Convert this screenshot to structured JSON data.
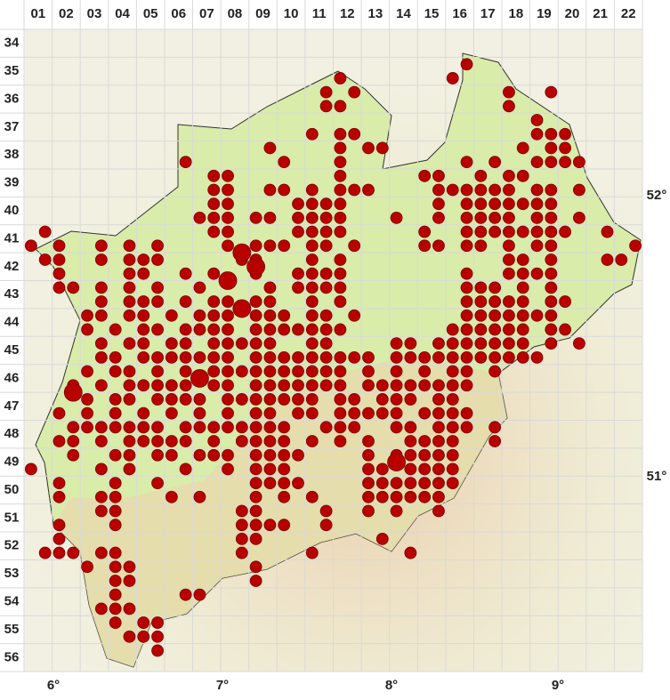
{
  "columns": [
    "01",
    "02",
    "03",
    "04",
    "05",
    "06",
    "07",
    "08",
    "09",
    "10",
    "11",
    "12",
    "13",
    "14",
    "15",
    "16",
    "17",
    "18",
    "19",
    "20",
    "21",
    "22"
  ],
  "rows": [
    "34",
    "35",
    "36",
    "37",
    "38",
    "39",
    "40",
    "41",
    "42",
    "43",
    "44",
    "45",
    "46",
    "47",
    "48",
    "49",
    "50",
    "51",
    "52",
    "53",
    "54",
    "55",
    "56"
  ],
  "lon_labels": [
    "6°",
    "7°",
    "8°",
    "9°"
  ],
  "lat_labels": [
    "52°",
    "51°"
  ],
  "dots": [
    {
      "row": 2,
      "cols": [
        31
      ]
    },
    {
      "row": 3,
      "cols": [
        22,
        30
      ]
    },
    {
      "row": 4,
      "cols": [
        21,
        23,
        34,
        37
      ]
    },
    {
      "row": 5,
      "cols": [
        21,
        22,
        34
      ]
    },
    {
      "row": 6,
      "cols": [
        36
      ]
    },
    {
      "row": 7,
      "cols": [
        20,
        22,
        23,
        36,
        37,
        38
      ]
    },
    {
      "row": 8,
      "cols": [
        17,
        22,
        24,
        25,
        35,
        37,
        38
      ]
    },
    {
      "row": 9,
      "cols": [
        11,
        18,
        22,
        31,
        33,
        36,
        37,
        38,
        39
      ]
    },
    {
      "row": 10,
      "cols": [
        13,
        14,
        22,
        28,
        29,
        32,
        34,
        35
      ]
    },
    {
      "row": 11,
      "cols": [
        13,
        14,
        17,
        18,
        20,
        22,
        23,
        24,
        29,
        30,
        31,
        32,
        33,
        34,
        36,
        37,
        39
      ]
    },
    {
      "row": 12,
      "cols": [
        13,
        14,
        19,
        20,
        21,
        22,
        29,
        31,
        32,
        33,
        34,
        35,
        36,
        37
      ]
    },
    {
      "row": 13,
      "cols": [
        12,
        13,
        14,
        16,
        17,
        19,
        20,
        21,
        22,
        26,
        29,
        31,
        32,
        33,
        34,
        36,
        37,
        39
      ]
    },
    {
      "row": 14,
      "cols": [
        1,
        13,
        14,
        19,
        20,
        21,
        22,
        28,
        31,
        32,
        33,
        34,
        35,
        36,
        37,
        38,
        41
      ]
    },
    {
      "row": 15,
      "cols": [
        0,
        2,
        5,
        7,
        9,
        14,
        16,
        17,
        18,
        20,
        21,
        23,
        28,
        29,
        31,
        32,
        34,
        36,
        37,
        43
      ]
    },
    {
      "row": 16,
      "cols": [
        1,
        2,
        5,
        7,
        8,
        9,
        15,
        16,
        20,
        22,
        34,
        35,
        37,
        41,
        42
      ]
    },
    {
      "row": 17,
      "cols": [
        2,
        7,
        8,
        11,
        13,
        16,
        19,
        20,
        21,
        22,
        31,
        34,
        35,
        36,
        37
      ]
    },
    {
      "row": 18,
      "cols": [
        2,
        3,
        5,
        7,
        9,
        12,
        17,
        19,
        20,
        21,
        22,
        31,
        32,
        33,
        35,
        37
      ]
    },
    {
      "row": 19,
      "cols": [
        5,
        7,
        8,
        9,
        11,
        13,
        14,
        16,
        17,
        20,
        22,
        31,
        32,
        33,
        34,
        35,
        37,
        38
      ]
    },
    {
      "row": 20,
      "cols": [
        4,
        5,
        7,
        8,
        10,
        12,
        13,
        14,
        16,
        17,
        18,
        20,
        21,
        23,
        31,
        32,
        33,
        34,
        35,
        36,
        37
      ]
    },
    {
      "row": 21,
      "cols": [
        4,
        6,
        8,
        9,
        11,
        12,
        13,
        14,
        16,
        17,
        18,
        19,
        20,
        21,
        22,
        30,
        31,
        32,
        33,
        34,
        35,
        37,
        38
      ]
    },
    {
      "row": 22,
      "cols": [
        5,
        7,
        8,
        10,
        11,
        13,
        14,
        15,
        16,
        17,
        20,
        21,
        26,
        27,
        29,
        30,
        31,
        32,
        33,
        34,
        35,
        37,
        39
      ]
    },
    {
      "row": 23,
      "cols": [
        5,
        6,
        8,
        9,
        10,
        11,
        12,
        13,
        14,
        16,
        17,
        18,
        19,
        20,
        21,
        22,
        23,
        24,
        26,
        27,
        28,
        29,
        30,
        31,
        32,
        33,
        34,
        35,
        36
      ]
    },
    {
      "row": 24,
      "cols": [
        4,
        6,
        7,
        9,
        11,
        13,
        14,
        15,
        16,
        17,
        18,
        19,
        20,
        21,
        22,
        24,
        26,
        28,
        30,
        31,
        33
      ]
    },
    {
      "row": 25,
      "cols": [
        3,
        5,
        7,
        8,
        9,
        10,
        11,
        13,
        14,
        16,
        17,
        18,
        19,
        20,
        21,
        22,
        24,
        25,
        26,
        27,
        28,
        29,
        30,
        31
      ]
    },
    {
      "row": 26,
      "cols": [
        4,
        6,
        7,
        9,
        10,
        11,
        12,
        14,
        15,
        16,
        17,
        18,
        19,
        20,
        22,
        23,
        25,
        26,
        27,
        29,
        30
      ]
    },
    {
      "row": 27,
      "cols": [
        2,
        4,
        6,
        8,
        10,
        12,
        14,
        16,
        17,
        19,
        20,
        22,
        23,
        24,
        25,
        26,
        28,
        29,
        30,
        31
      ]
    },
    {
      "row": 28,
      "cols": [
        3,
        4,
        5,
        6,
        7,
        8,
        9,
        11,
        12,
        13,
        14,
        15,
        16,
        17,
        18,
        21,
        22,
        23,
        26,
        27,
        29,
        30,
        31,
        33
      ]
    },
    {
      "row": 29,
      "cols": [
        2,
        3,
        5,
        7,
        8,
        9,
        10,
        11,
        13,
        15,
        16,
        17,
        18,
        20,
        22,
        24,
        27,
        28,
        29,
        30,
        33
      ]
    },
    {
      "row": 30,
      "cols": [
        3,
        6,
        7,
        9,
        10,
        12,
        13,
        14,
        16,
        17,
        18,
        19,
        24,
        26,
        27,
        28,
        29,
        30
      ]
    },
    {
      "row": 31,
      "cols": [
        0,
        5,
        7,
        11,
        14,
        16,
        17,
        18,
        24,
        25,
        27,
        28,
        29,
        30
      ]
    },
    {
      "row": 32,
      "cols": [
        2,
        6,
        9,
        16,
        17,
        18,
        19,
        24,
        25,
        26,
        27,
        28,
        29,
        30
      ]
    },
    {
      "row": 33,
      "cols": [
        2,
        5,
        6,
        10,
        12,
        16,
        18,
        20,
        24,
        25,
        26,
        27,
        28,
        29
      ]
    },
    {
      "row": 34,
      "cols": [
        5,
        6,
        15,
        16,
        21,
        24,
        26,
        29
      ]
    },
    {
      "row": 35,
      "cols": [
        2,
        6,
        15,
        16,
        17,
        18,
        21
      ]
    },
    {
      "row": 36,
      "cols": [
        2,
        15,
        16,
        25
      ]
    },
    {
      "row": 37,
      "cols": [
        1,
        2,
        3,
        5,
        6,
        15,
        20,
        27
      ]
    },
    {
      "row": 38,
      "cols": [
        4,
        6,
        7,
        16
      ]
    },
    {
      "row": 39,
      "cols": [
        6,
        7,
        16
      ]
    },
    {
      "row": 40,
      "cols": [
        6,
        11,
        12
      ]
    },
    {
      "row": 41,
      "cols": [
        5,
        6,
        7
      ]
    },
    {
      "row": 42,
      "cols": [
        6,
        8,
        9
      ]
    },
    {
      "row": 43,
      "cols": [
        7,
        8,
        9
      ]
    },
    {
      "row": 44,
      "cols": [
        9
      ]
    }
  ],
  "big_dots": [
    [
      15,
      15.5
    ],
    [
      16,
      16.5
    ],
    [
      14,
      17.5
    ],
    [
      15,
      19.5
    ],
    [
      3,
      25.5
    ],
    [
      12,
      24.5
    ],
    [
      26,
      30.5
    ]
  ]
}
